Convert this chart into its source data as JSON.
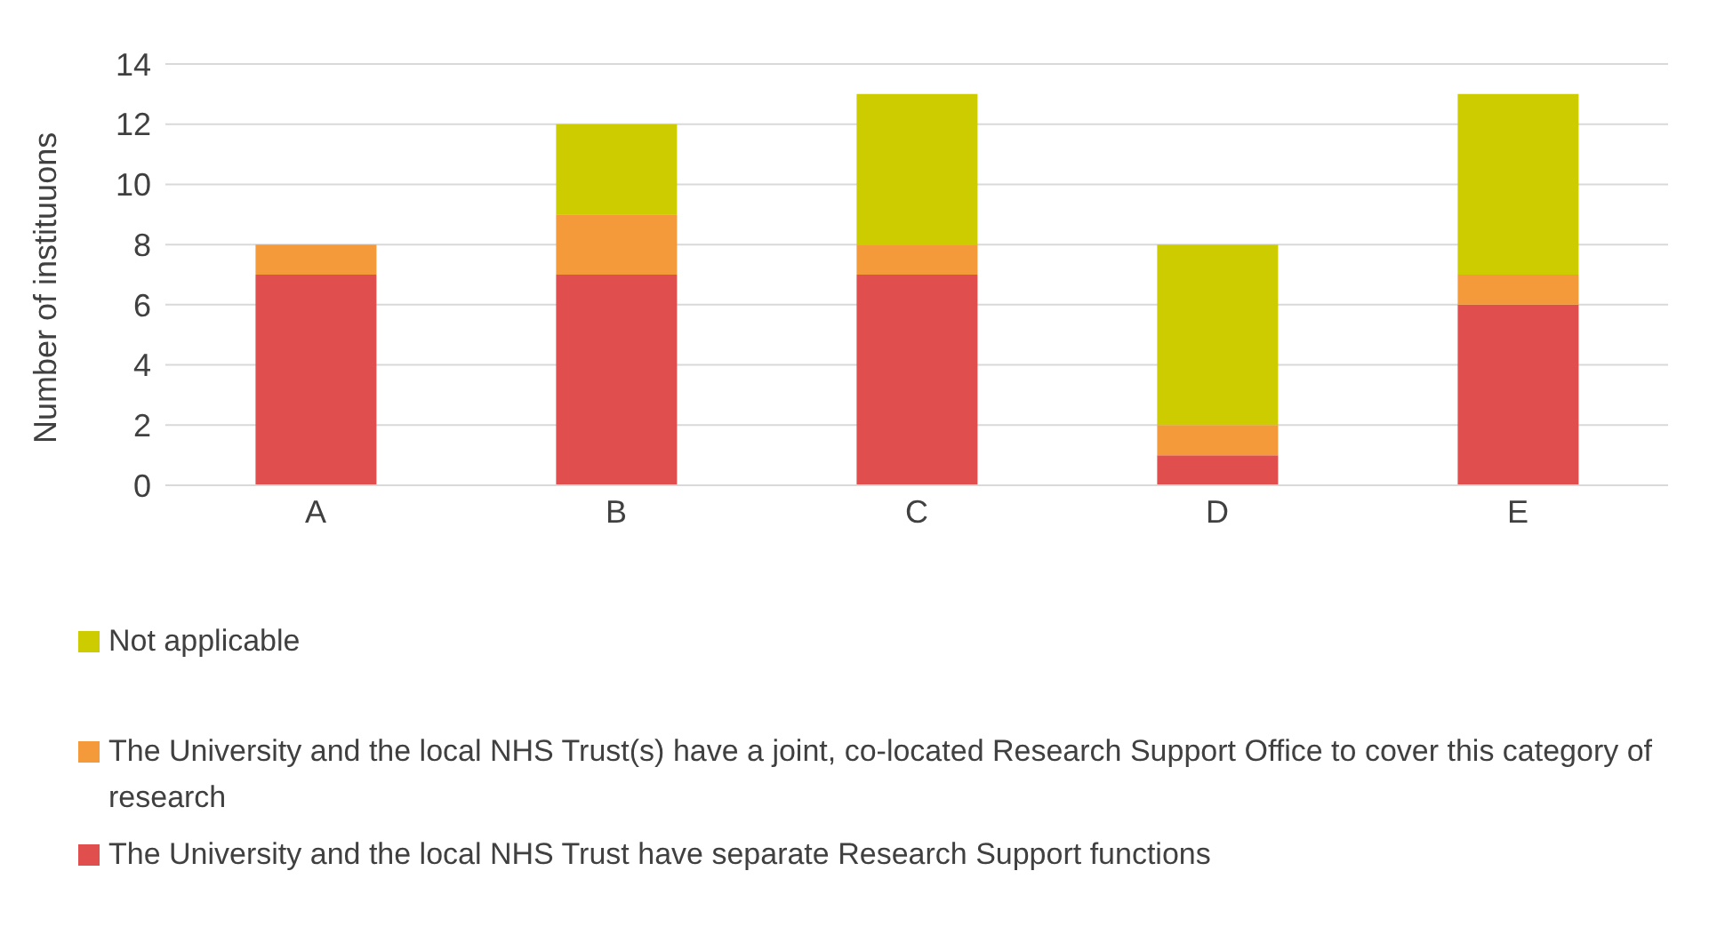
{
  "chart_data": {
    "type": "bar",
    "stacked": true,
    "ylabel": "Number of instituuons",
    "categories": [
      "A",
      "B",
      "C",
      "D",
      "E"
    ],
    "series": [
      {
        "name": "The University and the local NHS Trust have separate Research Support functions",
        "color": "#e04e4e",
        "values": [
          7,
          7,
          7,
          1,
          6
        ]
      },
      {
        "name": "The University and the local NHS Trust(s) have a joint, co-located Research Support Office to cover this category of research",
        "color": "#f59a3a",
        "values": [
          1,
          2,
          1,
          1,
          1
        ]
      },
      {
        "name": "Not applicable",
        "color": "#cccc00",
        "values": [
          0,
          3,
          5,
          6,
          6
        ]
      }
    ],
    "ylim": [
      0,
      14
    ],
    "yticks": [
      0,
      2,
      4,
      6,
      8,
      10,
      12,
      14
    ],
    "grid": "y",
    "legend": "bottom"
  }
}
